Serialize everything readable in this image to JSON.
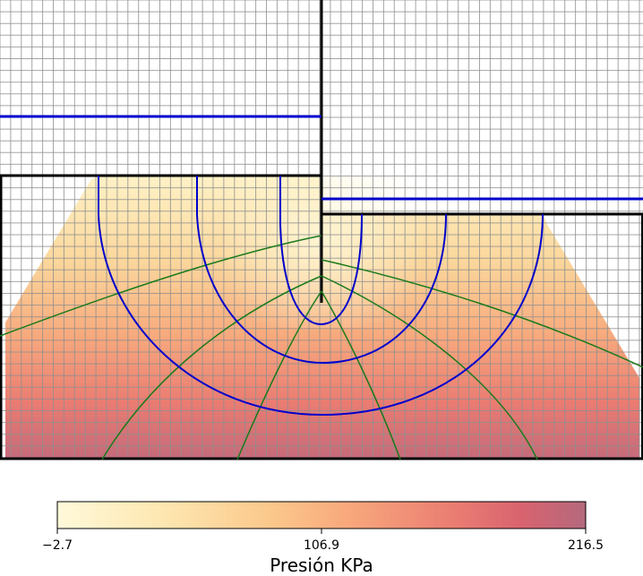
{
  "chart_data": {
    "type": "heatmap",
    "title": "",
    "colorbar": {
      "label": "Presión KPa",
      "min": -2.7,
      "max": 216.5,
      "ticks": [
        -2.7,
        106.9,
        216.5
      ],
      "tick_labels": [
        "−2.7",
        "106.9",
        "216.5"
      ],
      "colormap": [
        "#fff9da",
        "#fde7b1",
        "#fbc98c",
        "#f8a87c",
        "#ea7d72",
        "#d8636f",
        "#b4697d"
      ],
      "orientation": "horizontal",
      "placement": "bottom"
    },
    "grid": true,
    "description_series": [
      {
        "name": "",
        "kind": "equipotential-lines",
        "color": "#0000cc"
      },
      {
        "name": "",
        "kind": "flow-lines",
        "color": "#1a7a1a"
      },
      {
        "name": "",
        "kind": "water-level",
        "color": "#0000cc"
      },
      {
        "name": "",
        "kind": "boundaries",
        "color": "#000000"
      }
    ]
  }
}
